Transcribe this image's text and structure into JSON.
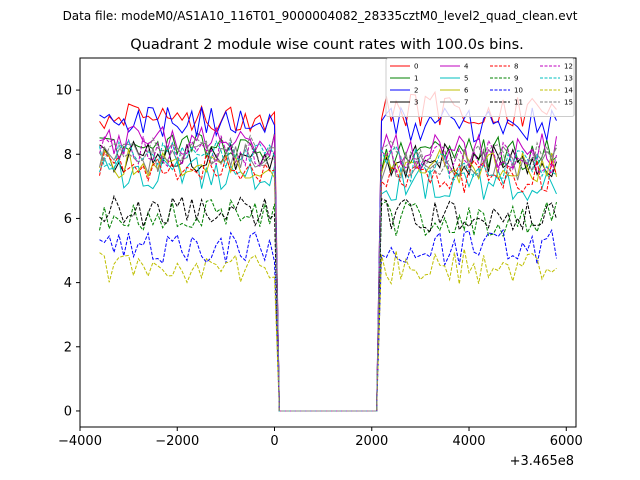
{
  "chart_data": {
    "type": "line",
    "suptitle": "Data file: modeM0/AS1A10_116T01_9000004082_28335cztM0_level2_quad_clean.evt",
    "title": "Quadrant 2 module wise count rates with 100.0s bins.",
    "xlabel": "",
    "ylabel": "",
    "x_offset_label": "+3.465e8",
    "xlim": [
      -4000,
      6200
    ],
    "ylim": [
      -0.5,
      11
    ],
    "xticks": [
      -4000,
      -2000,
      0,
      2000,
      4000,
      6000
    ],
    "xtick_labels": [
      "−4000",
      "−2000",
      "0",
      "2000",
      "4000",
      "6000"
    ],
    "yticks": [
      0,
      2,
      4,
      6,
      8,
      10
    ],
    "ytick_labels": [
      "0",
      "2",
      "4",
      "6",
      "8",
      "10"
    ],
    "gap": {
      "start": 100,
      "end": 2100,
      "value": 0
    },
    "x_segment1": {
      "start": -3600,
      "end": 0,
      "step": 100
    },
    "x_segment2": {
      "start": 2200,
      "end": 5800,
      "step": 100
    },
    "legend_position": "top-right",
    "series": [
      {
        "name": "0",
        "color": "#ff0000",
        "dash": "solid",
        "levels": [
          9.2,
          9.4
        ]
      },
      {
        "name": "1",
        "color": "#008000",
        "dash": "solid",
        "levels": [
          8.2,
          8.0
        ]
      },
      {
        "name": "2",
        "color": "#0000ff",
        "dash": "solid",
        "levels": [
          9.0,
          8.9
        ]
      },
      {
        "name": "3",
        "color": "#000000",
        "dash": "solid",
        "levels": [
          7.9,
          7.8
        ]
      },
      {
        "name": "4",
        "color": "#bf00bf",
        "dash": "solid",
        "levels": [
          8.4,
          8.1
        ]
      },
      {
        "name": "5",
        "color": "#00bfbf",
        "dash": "solid",
        "levels": [
          7.4,
          7.1
        ]
      },
      {
        "name": "6",
        "color": "#bfbf00",
        "dash": "solid",
        "levels": [
          7.7,
          7.6
        ]
      },
      {
        "name": "7",
        "color": "#808080",
        "dash": "solid",
        "levels": [
          7.9,
          7.7
        ]
      },
      {
        "name": "8",
        "color": "#ff0000",
        "dash": "dashed",
        "levels": [
          7.6,
          7.3
        ]
      },
      {
        "name": "9",
        "color": "#008000",
        "dash": "dashed",
        "levels": [
          6.1,
          6.0
        ]
      },
      {
        "name": "10",
        "color": "#0000ff",
        "dash": "dashed",
        "levels": [
          5.1,
          5.1
        ]
      },
      {
        "name": "11",
        "color": "#000000",
        "dash": "dashed",
        "levels": [
          6.2,
          6.1
        ]
      },
      {
        "name": "12",
        "color": "#bf00bf",
        "dash": "dashed",
        "levels": [
          8.1,
          7.9
        ]
      },
      {
        "name": "13",
        "color": "#00bfbf",
        "dash": "dashed",
        "levels": [
          8.0,
          7.7
        ]
      },
      {
        "name": "14",
        "color": "#bfbf00",
        "dash": "dashed",
        "levels": [
          4.5,
          4.5
        ]
      },
      {
        "name": "15",
        "color": "#808080",
        "dash": "dashed",
        "levels": [
          8.1,
          7.9
        ]
      }
    ]
  }
}
